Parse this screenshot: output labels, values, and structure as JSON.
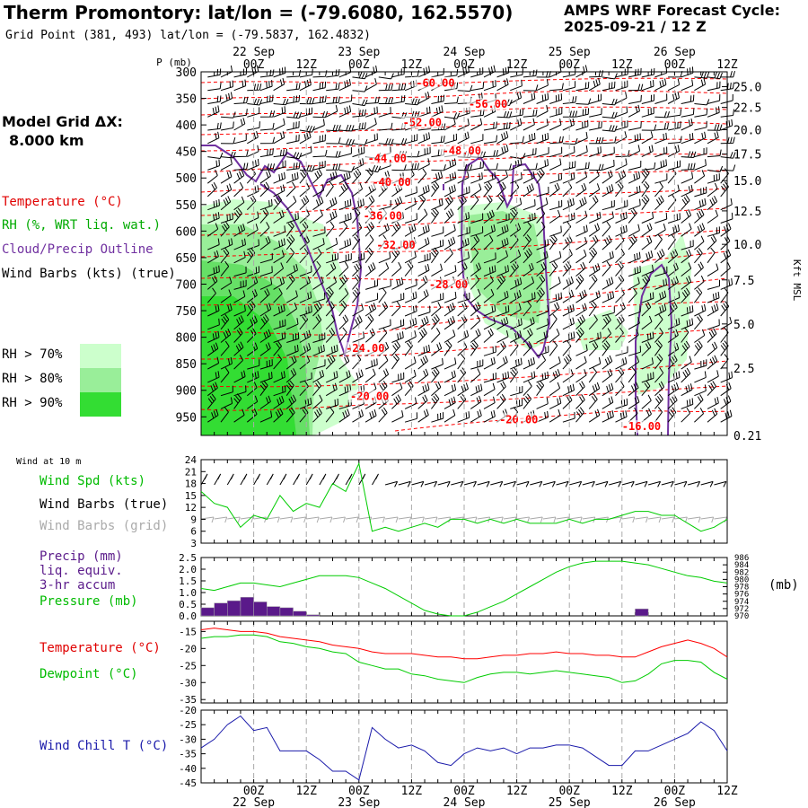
{
  "header": {
    "title": "Therm Promontory:  lat/lon = (-79.6080, 162.5570)",
    "grid_point": "Grid Point (381, 493) lat/lon = (-79.5837, 162.4832)",
    "cycle_title": "AMPS WRF Forecast Cycle:",
    "cycle_time": "2025-09-21 / 12  Z",
    "grid_res_title": "Model Grid ΔX:",
    "grid_res_value": "8.000 km"
  },
  "colors": {
    "temperature": "#ff0000",
    "dewpoint": "#00cc00",
    "rh": "#00aa00",
    "cloud": "#7030a0",
    "precip": "#5a1a8a",
    "pressure": "#00cc00",
    "wind_speed": "#00cc00",
    "wind_chill": "#1a1aaa",
    "grid_barbs": "#aaaaaa",
    "rh70": "#ccffcc",
    "rh80": "#99ee99",
    "rh90": "#33dd33"
  },
  "legend": {
    "temperature": "Temperature (°C)",
    "rh": "RH (%, WRT liq. wat.)",
    "cloud": "Cloud/Precip Outline",
    "wind_barbs": "Wind Barbs (kts) (true)",
    "rh70": "RH > 70%",
    "rh80": "RH > 80%",
    "rh90": "RH > 90%",
    "wind10m": "Wind at 10 m",
    "wind_spd": "Wind Spd (kts)",
    "wind_barbs_true": "Wind Barbs (true)",
    "wind_barbs_grid": "Wind Barbs (grid)",
    "precip1": "Precip (mm)",
    "precip2": "liq. equiv.",
    "precip3": "3-hr accum",
    "pressure": "Pressure (mb)",
    "pressure_unit": "(mb)",
    "temp2": "Temperature (°C)",
    "dewpoint": "Dewpoint (°C)",
    "wind_chill": "Wind Chill T (°C)"
  },
  "chart_data": [
    {
      "type": "heatmap",
      "panel": "cross-section",
      "ylabel_left": "P (mb)",
      "ylabel_right": "Kft MSL",
      "pressure_ticks": [
        300,
        350,
        400,
        450,
        500,
        550,
        600,
        650,
        700,
        750,
        800,
        850,
        900,
        950
      ],
      "height_ticks": [
        "25.0",
        "22.5",
        "20.0",
        "17.5",
        "15.0",
        "12.5",
        "10.0",
        "7.5",
        "5.0",
        "2.5",
        "0.21"
      ],
      "height_tick_pressures": [
        328,
        367,
        409,
        455,
        505,
        562,
        625,
        692,
        775,
        858,
        985
      ],
      "time_ticks": [
        "00Z",
        "12Z",
        "00Z",
        "12Z",
        "00Z",
        "12Z",
        "00Z",
        "12Z",
        "00Z",
        "12Z"
      ],
      "time_tick_hours": [
        12,
        24,
        36,
        48,
        60,
        72,
        84,
        96,
        108,
        120
      ],
      "date_labels": [
        "22 Sep",
        "23 Sep",
        "24 Sep",
        "25 Sep",
        "26 Sep"
      ],
      "date_hours": [
        12,
        36,
        60,
        84,
        108
      ],
      "xlim_hours": [
        0,
        120
      ],
      "ylim_mb": [
        300,
        985
      ],
      "temperature_contour_labels": [
        {
          "text": "-60.00",
          "h": 49,
          "p": 328
        },
        {
          "text": "-56.00",
          "h": 61,
          "p": 368
        },
        {
          "text": "-52.00",
          "h": 46,
          "p": 402
        },
        {
          "text": "-48.00",
          "h": 55,
          "p": 456
        },
        {
          "text": "-44.00",
          "h": 38,
          "p": 470
        },
        {
          "text": "-40.00",
          "h": 39,
          "p": 515
        },
        {
          "text": "-36.00",
          "h": 37,
          "p": 578
        },
        {
          "text": "-32.00",
          "h": 40,
          "p": 633
        },
        {
          "text": "-28.00",
          "h": 52,
          "p": 708
        },
        {
          "text": "-24.00",
          "h": 33,
          "p": 828
        },
        {
          "text": "-20.00",
          "h": 34,
          "p": 918
        },
        {
          "text": "-20.00",
          "h": 68,
          "p": 962
        },
        {
          "text": "-16.00",
          "h": 96,
          "p": 975
        }
      ]
    },
    {
      "type": "line",
      "panel": "wind-speed-10m",
      "y_ticks": [
        24,
        21,
        18,
        15,
        12,
        9,
        6,
        3
      ],
      "ylim": [
        3,
        24
      ],
      "x_hours": [
        0,
        3,
        6,
        9,
        12,
        15,
        18,
        21,
        24,
        27,
        30,
        33,
        36,
        39,
        42,
        45,
        48,
        51,
        54,
        57,
        60,
        63,
        66,
        69,
        72,
        75,
        78,
        81,
        84,
        87,
        90,
        93,
        96,
        99,
        102,
        105,
        108,
        111,
        114,
        117,
        120
      ],
      "series": [
        {
          "values": [
            16,
            13,
            12,
            7,
            10,
            9,
            15,
            11,
            13,
            12,
            18,
            16,
            23,
            6,
            7,
            6,
            7,
            8,
            7,
            9,
            9,
            8,
            9,
            8,
            9,
            8,
            8,
            8,
            9,
            8,
            9,
            9,
            10,
            11,
            11,
            10,
            10,
            8,
            6,
            7,
            9
          ]
        }
      ]
    },
    {
      "type": "bar",
      "panel": "precip-pressure",
      "precip_ticks": [
        "2.5",
        "2.0",
        "1.5",
        "1.0",
        "0.5",
        "0.0"
      ],
      "pressure_ticks": [
        986,
        984,
        982,
        980,
        978,
        976,
        974,
        972,
        970
      ],
      "precip_hours": [
        1.5,
        4.5,
        7.5,
        10.5,
        13.5,
        16.5,
        19.5,
        22.5,
        25.5,
        100.5
      ],
      "precip_values": [
        0.35,
        0.55,
        0.65,
        0.8,
        0.6,
        0.4,
        0.35,
        0.2,
        0.05,
        0.3
      ],
      "pressure_hours": [
        0,
        3,
        6,
        9,
        12,
        15,
        18,
        21,
        24,
        27,
        30,
        33,
        36,
        39,
        42,
        45,
        48,
        51,
        54,
        57,
        60,
        63,
        66,
        69,
        72,
        75,
        78,
        81,
        84,
        87,
        90,
        93,
        96,
        99,
        102,
        105,
        108,
        111,
        114,
        117,
        120
      ],
      "pressure_values": [
        977.5,
        977,
        978,
        979,
        979,
        978.5,
        978,
        979,
        980,
        981,
        981,
        981,
        980.5,
        979,
        977.5,
        975.5,
        973.5,
        971.5,
        970.5,
        970,
        970,
        971,
        972.5,
        974,
        976,
        978,
        980,
        982,
        983.5,
        984.5,
        985,
        985,
        985,
        984.5,
        984,
        983,
        982,
        981,
        980.5,
        979.5,
        979
      ]
    },
    {
      "type": "line",
      "panel": "temperature-dewpoint",
      "y_ticks": [
        -15,
        -20,
        -25,
        -30,
        -35
      ],
      "ylim": [
        -36,
        -12
      ],
      "x_hours": [
        0,
        3,
        6,
        9,
        12,
        15,
        18,
        21,
        24,
        27,
        30,
        33,
        36,
        39,
        42,
        45,
        48,
        51,
        54,
        57,
        60,
        63,
        66,
        69,
        72,
        75,
        78,
        81,
        84,
        87,
        90,
        93,
        96,
        99,
        102,
        105,
        108,
        111,
        114,
        117,
        120
      ],
      "series": [
        {
          "name": "Temperature",
          "values": [
            -14.5,
            -14,
            -14.5,
            -15,
            -15,
            -15.5,
            -16.5,
            -17,
            -17.5,
            -18,
            -19,
            -19.5,
            -20,
            -21,
            -21.5,
            -21.5,
            -21.5,
            -22,
            -22.5,
            -22.5,
            -23,
            -23,
            -22.5,
            -22,
            -22,
            -21.5,
            -21.5,
            -21,
            -21.5,
            -21.5,
            -22,
            -22,
            -22.5,
            -22.5,
            -21,
            -19.5,
            -18.5,
            -17.5,
            -18.5,
            -20,
            -22.5
          ]
        },
        {
          "name": "Dewpoint",
          "values": [
            -17,
            -16.5,
            -16.5,
            -16,
            -16,
            -16.5,
            -18,
            -18.5,
            -19.5,
            -20,
            -21,
            -21.5,
            -24,
            -25,
            -26,
            -26,
            -27.5,
            -28,
            -29,
            -29.5,
            -30,
            -28.5,
            -27.5,
            -27,
            -27,
            -27.5,
            -27,
            -26.5,
            -27,
            -27.5,
            -28,
            -28.5,
            -30,
            -29.5,
            -27.5,
            -24.5,
            -23.5,
            -23.5,
            -24,
            -27,
            -29
          ]
        }
      ]
    },
    {
      "type": "line",
      "panel": "wind-chill",
      "y_ticks": [
        -20,
        -25,
        -30,
        -35,
        -40,
        -45
      ],
      "ylim": [
        -45,
        -20
      ],
      "x_hours": [
        0,
        3,
        6,
        9,
        12,
        15,
        18,
        21,
        24,
        27,
        30,
        33,
        36,
        39,
        42,
        45,
        48,
        51,
        54,
        57,
        60,
        63,
        66,
        69,
        72,
        75,
        78,
        81,
        84,
        87,
        90,
        93,
        96,
        99,
        102,
        105,
        108,
        111,
        114,
        117,
        120
      ],
      "series": [
        {
          "values": [
            -33,
            -30,
            -25,
            -22,
            -27,
            -26,
            -34,
            -34,
            -34,
            -37,
            -41,
            -41,
            -44,
            -26,
            -30,
            -33,
            -32,
            -34,
            -38,
            -39,
            -35,
            -33,
            -34,
            -33,
            -35,
            -33,
            -33,
            -32,
            -32,
            -33,
            -36,
            -39,
            -39,
            -34,
            -34,
            -32,
            -30,
            -28,
            -24,
            -27,
            -34
          ]
        }
      ]
    }
  ]
}
